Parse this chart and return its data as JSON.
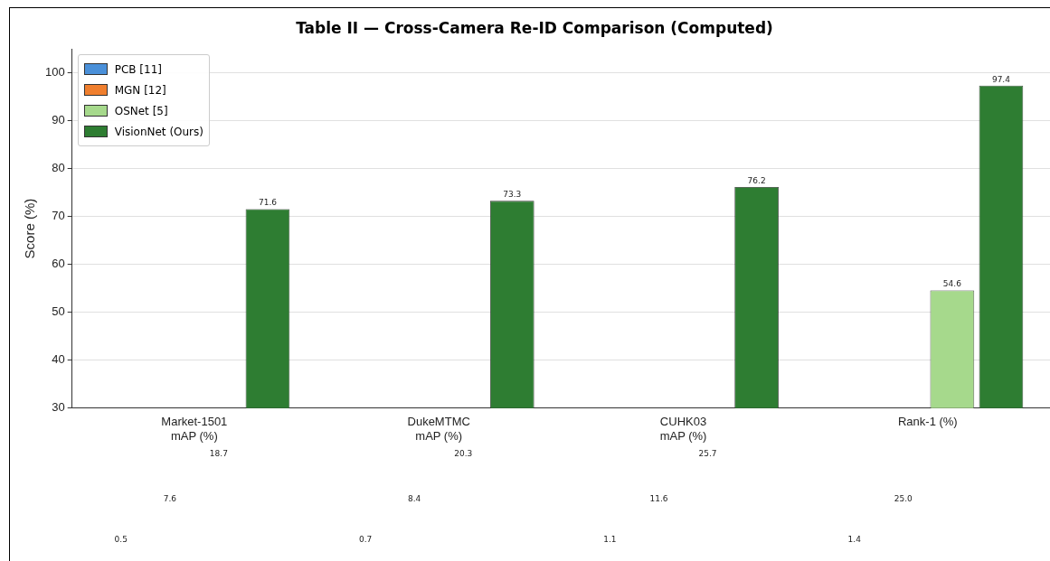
{
  "chart_data": {
    "type": "bar",
    "title": "Table II — Cross-Camera Re-ID Comparison (Computed)",
    "ylabel": "Score (%)",
    "categories": [
      "Market-1501\nmAP (%)",
      "DukeMTMC\nmAP (%)",
      "CUHK03\nmAP (%)",
      "Rank-1 (%)"
    ],
    "series": [
      {
        "name": "PCB [11]",
        "color": "#4a90d9",
        "values": [
          null,
          null,
          null,
          null
        ]
      },
      {
        "name": "MGN [12]",
        "color": "#f07f2e",
        "values": [
          null,
          null,
          null,
          null
        ]
      },
      {
        "name": "OSNet [5]",
        "color": "#a6d98c",
        "values": [
          null,
          null,
          null,
          54.6
        ]
      },
      {
        "name": "VisionNet (Ours)",
        "color": "#2e7d32",
        "values": [
          71.6,
          73.3,
          76.2,
          97.4
        ]
      }
    ],
    "annotations": [
      "0.5",
      "7.6",
      "18.7",
      "0.7",
      "8.4",
      "20.3",
      "1.1",
      "11.6",
      "25.7",
      "1.4",
      "25.0"
    ],
    "ylim": [
      30,
      105
    ],
    "yticks": [
      30,
      40,
      50,
      60,
      70,
      80,
      90,
      100
    ],
    "grid": "y",
    "legend": "top left",
    "data_labels": true
  }
}
